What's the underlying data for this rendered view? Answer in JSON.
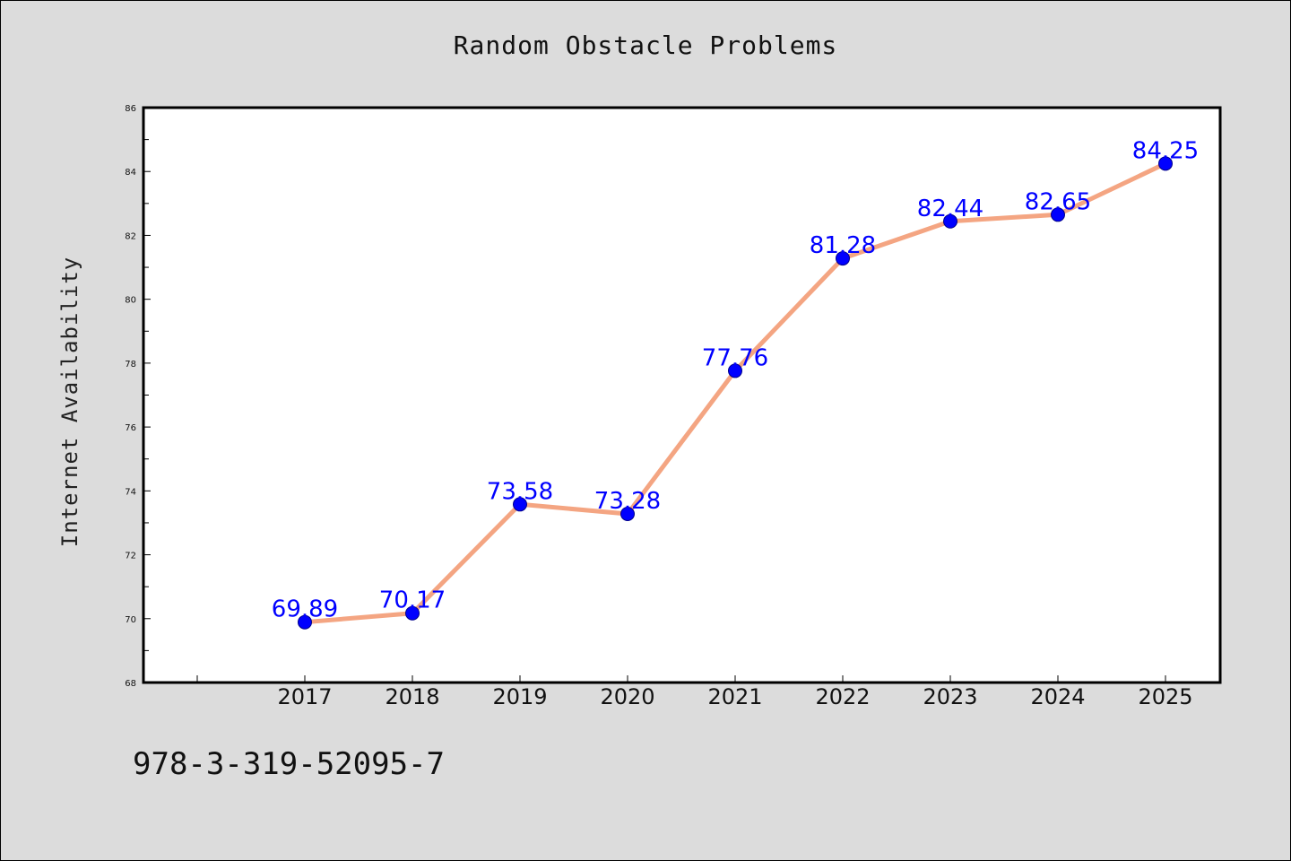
{
  "title": "Random Obstacle Problems",
  "footer_code": "978-3-319-52095-7",
  "chart_data": {
    "type": "line",
    "title": "Random Obstacle Problems",
    "xlabel": "",
    "ylabel": "Internet Availability",
    "x": [
      "2017",
      "2018",
      "2019",
      "2020",
      "2021",
      "2022",
      "2023",
      "2024",
      "2025"
    ],
    "series": [
      {
        "values": [
          69.89,
          70.17,
          73.58,
          73.28,
          77.76,
          81.28,
          82.44,
          82.65,
          84.25
        ],
        "data_labels": [
          "69.89",
          "70.17",
          "73.58",
          "73.28",
          "77.76",
          "81.28",
          "82.44",
          "82.65",
          "84.25"
        ],
        "line_color": "#f4a582",
        "marker_color": "#0000ff",
        "label_color": "#0000ff"
      }
    ],
    "ylim": [
      68,
      86
    ],
    "y_ticks": [
      "68",
      "70",
      "72",
      "74",
      "76",
      "78",
      "80",
      "82",
      "84",
      "86"
    ],
    "grid": false,
    "legend": "none"
  }
}
